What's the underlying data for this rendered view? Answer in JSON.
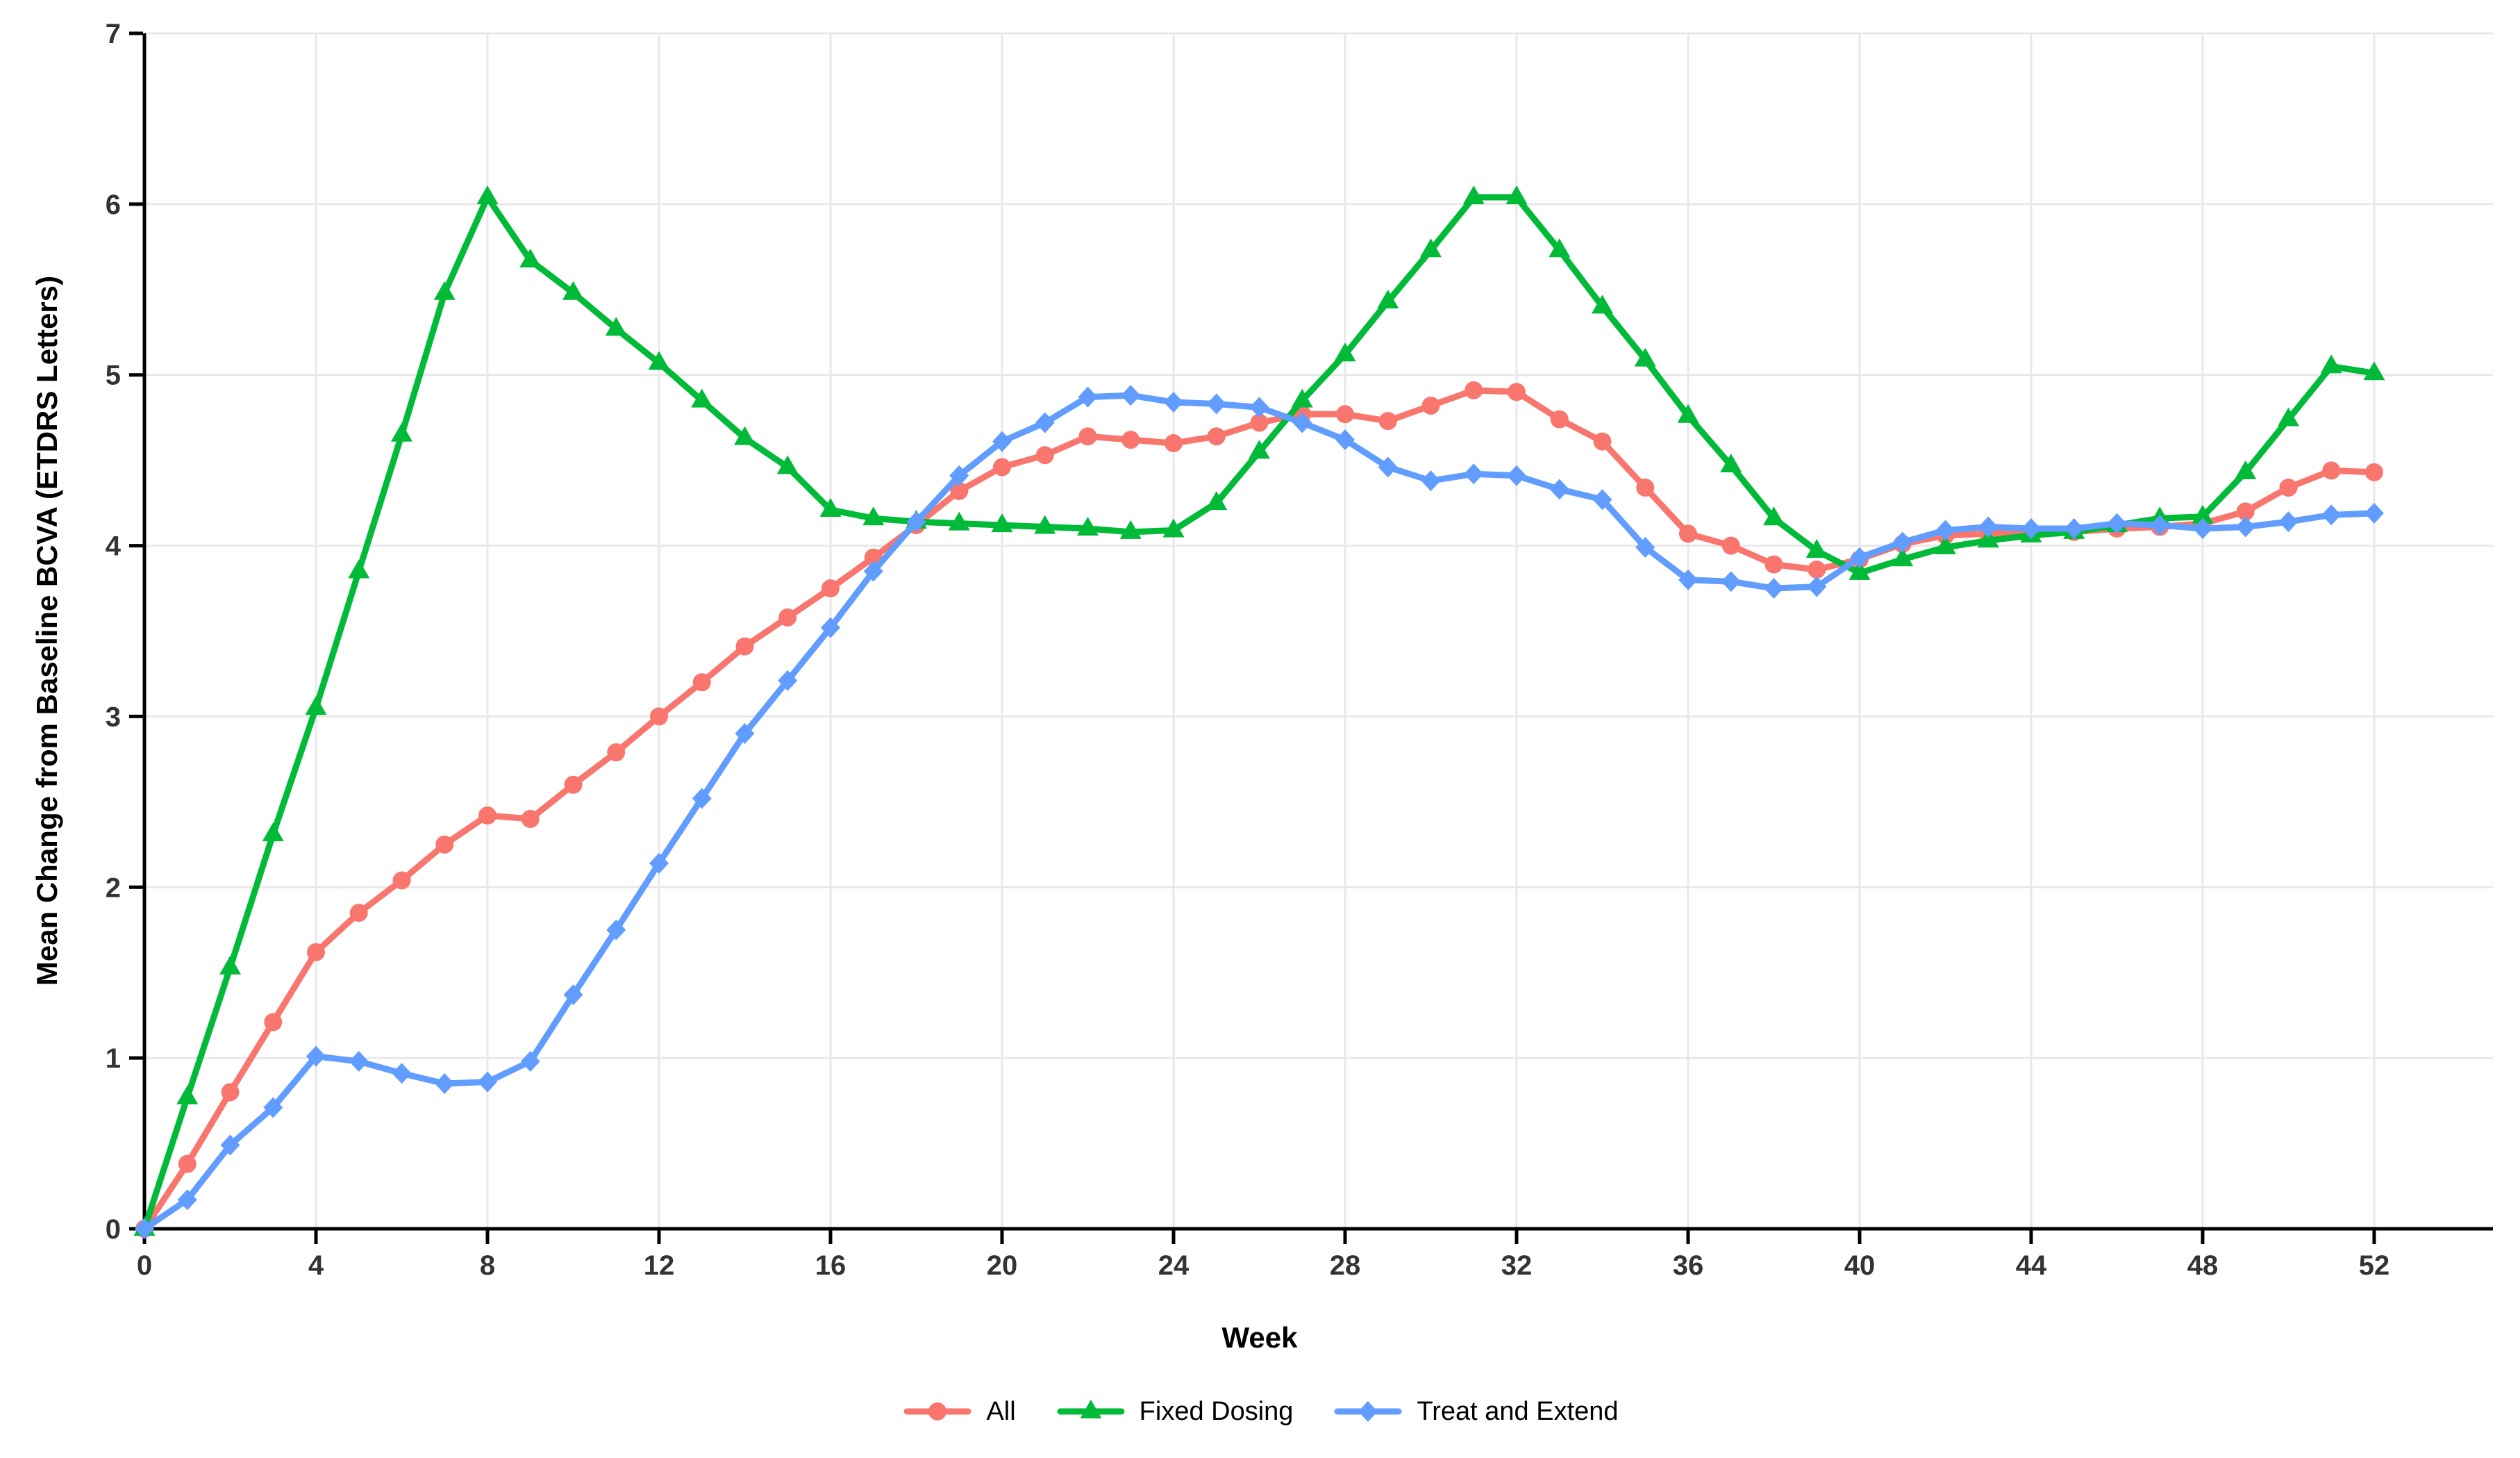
{
  "chart_data": {
    "type": "line",
    "title": "",
    "xlabel": "Week",
    "ylabel": "Mean Change from Baseline BCVA (ETDRS Letters)",
    "xlim": [
      0,
      52
    ],
    "ylim": [
      0,
      7
    ],
    "x_ticks": [
      0,
      4,
      8,
      12,
      16,
      20,
      24,
      28,
      32,
      36,
      40,
      44,
      48,
      52
    ],
    "y_ticks": [
      0,
      1,
      2,
      3,
      4,
      5,
      6,
      7
    ],
    "grid": true,
    "legend_position": "bottom",
    "x": [
      0,
      1,
      2,
      3,
      4,
      5,
      6,
      7,
      8,
      9,
      10,
      11,
      12,
      13,
      14,
      15,
      16,
      17,
      18,
      19,
      20,
      21,
      22,
      23,
      24,
      25,
      26,
      27,
      28,
      29,
      30,
      31,
      32,
      33,
      34,
      35,
      36,
      37,
      38,
      39,
      40,
      41,
      42,
      43,
      44,
      45,
      46,
      47,
      48,
      49,
      50,
      51,
      52
    ],
    "series": [
      {
        "name": "All",
        "color": "#F8766D",
        "marker": "circle",
        "values": [
          0,
          0.38,
          0.8,
          1.21,
          1.62,
          1.85,
          2.04,
          2.25,
          2.42,
          2.4,
          2.6,
          2.79,
          3.0,
          3.2,
          3.41,
          3.58,
          3.75,
          3.93,
          4.12,
          4.32,
          4.46,
          4.53,
          4.64,
          4.62,
          4.6,
          4.64,
          4.72,
          4.77,
          4.77,
          4.73,
          4.82,
          4.91,
          4.9,
          4.74,
          4.61,
          4.34,
          4.07,
          4.0,
          3.89,
          3.86,
          3.92,
          4.01,
          4.06,
          4.07,
          4.08,
          4.08,
          4.1,
          4.11,
          4.13,
          4.2,
          4.34,
          4.44,
          4.43
        ]
      },
      {
        "name": "Fixed Dosing",
        "color": "#00BA38",
        "marker": "triangle",
        "values": [
          0,
          0.77,
          1.53,
          2.31,
          3.05,
          3.85,
          4.65,
          5.48,
          6.04,
          5.67,
          5.48,
          5.27,
          5.07,
          4.85,
          4.63,
          4.46,
          4.21,
          4.16,
          4.14,
          4.13,
          4.12,
          4.11,
          4.1,
          4.08,
          4.09,
          4.25,
          4.55,
          4.85,
          5.12,
          5.43,
          5.73,
          6.04,
          6.04,
          5.73,
          5.4,
          5.09,
          4.76,
          4.47,
          4.16,
          3.97,
          3.84,
          3.92,
          3.99,
          4.03,
          4.06,
          4.08,
          4.12,
          4.16,
          4.17,
          4.43,
          4.74,
          5.05,
          5.01
        ]
      },
      {
        "name": "Treat and Extend",
        "color": "#619CFF",
        "marker": "diamond",
        "values": [
          0,
          0.17,
          0.49,
          0.71,
          1.01,
          0.98,
          0.91,
          0.85,
          0.86,
          0.98,
          1.37,
          1.75,
          2.14,
          2.52,
          2.9,
          3.21,
          3.52,
          3.85,
          4.14,
          4.41,
          4.61,
          4.72,
          4.87,
          4.88,
          4.84,
          4.83,
          4.81,
          4.72,
          4.62,
          4.46,
          4.38,
          4.42,
          4.41,
          4.33,
          4.27,
          3.99,
          3.8,
          3.79,
          3.75,
          3.76,
          3.93,
          4.02,
          4.09,
          4.11,
          4.1,
          4.1,
          4.13,
          4.12,
          4.1,
          4.11,
          4.14,
          4.18,
          4.19
        ]
      }
    ],
    "colors": {
      "grid": "#E8E8E8",
      "axis": "#000000",
      "tick_label": "#333333",
      "background": "#FFFFFF"
    }
  }
}
